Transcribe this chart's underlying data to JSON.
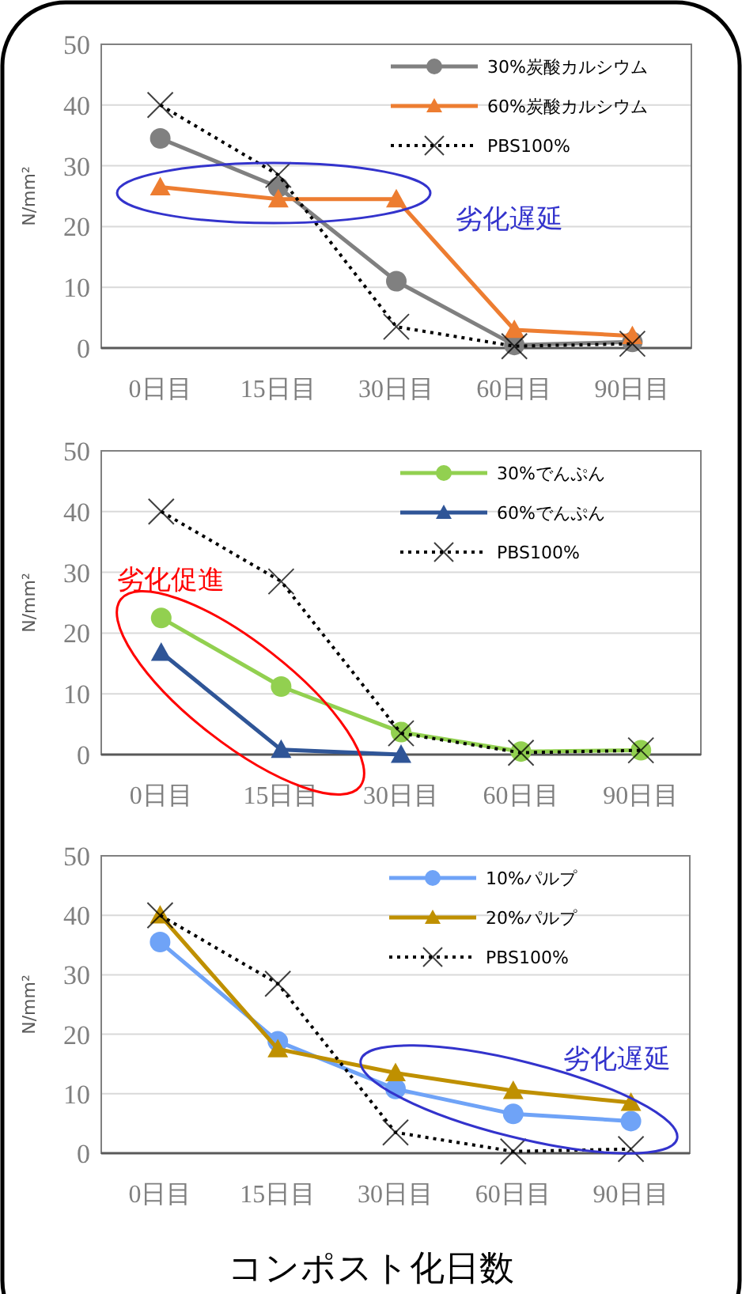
{
  "chart_data": [
    {
      "type": "line",
      "categories": [
        "0日目",
        "15日目",
        "30日目",
        "60日目",
        "90日目"
      ],
      "ylabel": "N/mm²",
      "ylim": [
        0,
        50
      ],
      "yticks": [
        0,
        10,
        20,
        30,
        40,
        50
      ],
      "grid": "y",
      "legend": "top right",
      "series": [
        {
          "name": "30%炭酸カルシウム",
          "color": "#808080",
          "marker": "circle",
          "line_style": "solid",
          "values": [
            34.5,
            26.5,
            11,
            0.5,
            1
          ]
        },
        {
          "name": "60%炭酸カルシウム",
          "color": "#ed7d31",
          "marker": "triangle",
          "line_style": "solid",
          "values": [
            26.5,
            24.5,
            24.5,
            3,
            2
          ]
        },
        {
          "name": "PBS100%",
          "color": "#000000",
          "marker": "cross",
          "line_style": "dotted",
          "values": [
            40,
            28.5,
            3.5,
            0.3,
            0.7
          ]
        }
      ],
      "annotations": [
        "劣化遅延"
      ]
    },
    {
      "type": "line",
      "categories": [
        "0日目",
        "15日目",
        "30日目",
        "60日目",
        "90日目"
      ],
      "ylabel": "N/mm²",
      "ylim": [
        0,
        50
      ],
      "yticks": [
        0,
        10,
        20,
        30,
        40,
        50
      ],
      "grid": "y",
      "legend": "top right",
      "series": [
        {
          "name": "30%でんぷん",
          "color": "#92d050",
          "marker": "circle",
          "line_style": "solid",
          "values": [
            22.5,
            11.2,
            3.7,
            0.5,
            0.7
          ]
        },
        {
          "name": "60%でんぷん",
          "color": "#2f5597",
          "marker": "triangle",
          "line_style": "solid",
          "values": [
            16.8,
            0.8,
            0,
            null,
            null
          ]
        },
        {
          "name": "PBS100%",
          "color": "#000000",
          "marker": "cross",
          "line_style": "dotted",
          "values": [
            40,
            28.5,
            3.5,
            0.3,
            0.7
          ]
        }
      ],
      "annotations": [
        "劣化促進"
      ]
    },
    {
      "type": "line",
      "categories": [
        "0日目",
        "15日目",
        "30日目",
        "60日目",
        "90日目"
      ],
      "ylabel": "N/mm²",
      "xlabel": "コンポスト化日数",
      "ylim": [
        0,
        50
      ],
      "yticks": [
        0,
        10,
        20,
        30,
        40,
        50
      ],
      "grid": "y",
      "legend": "top right",
      "series": [
        {
          "name": "10%パルプ",
          "color": "#6fa3f7",
          "marker": "circle",
          "line_style": "solid",
          "values": [
            35.5,
            18.8,
            10.8,
            6.6,
            5.4
          ]
        },
        {
          "name": "20%パルプ",
          "color": "#bf9000",
          "marker": "triangle",
          "line_style": "solid",
          "values": [
            40,
            17.5,
            13.5,
            10.5,
            8.5
          ]
        },
        {
          "name": "PBS100%",
          "color": "#000000",
          "marker": "cross",
          "line_style": "dotted",
          "values": [
            40,
            28.5,
            3.5,
            0.3,
            0.7
          ]
        }
      ],
      "annotations": [
        "劣化遅延"
      ]
    }
  ]
}
